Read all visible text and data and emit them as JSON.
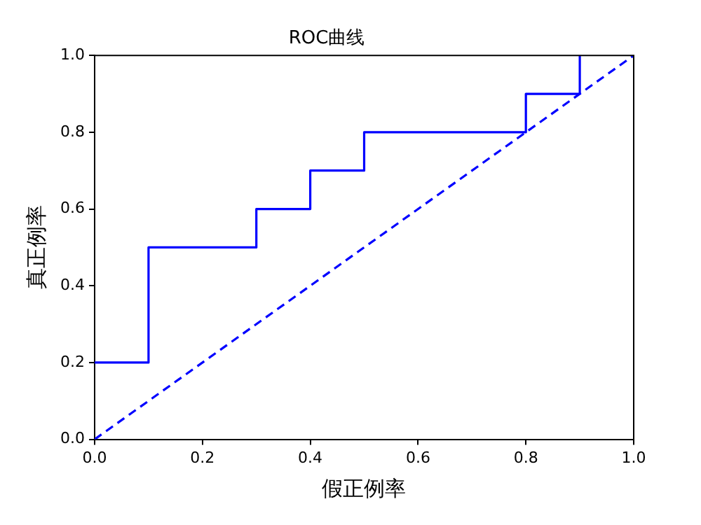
{
  "chart_data": {
    "type": "line",
    "title": "ROC曲线",
    "xlabel": "假正例率",
    "ylabel": "真正例率",
    "xlim": [
      0,
      1
    ],
    "ylim": [
      0,
      1
    ],
    "xticks": [
      {
        "value": 0,
        "label": "0.0"
      },
      0.2,
      0.4,
      0.6,
      0.8,
      {
        "value": 1,
        "label": "1.0"
      }
    ],
    "yticks": [
      {
        "value": 0,
        "label": "0.0"
      },
      0.2,
      0.4,
      0.6,
      0.8,
      {
        "value": 1,
        "label": "1.0"
      }
    ],
    "grid": false,
    "legend": false,
    "marker": "none",
    "series": [
      {
        "color": "#0000ff",
        "line_style": "solid",
        "x": [
          0,
          0.1,
          0.1,
          0.3,
          0.3,
          0.4,
          0.4,
          0.5,
          0.5,
          0.8,
          0.8,
          0.9,
          0.9
        ],
        "values": [
          0.2,
          0.2,
          0.5,
          0.5,
          0.6,
          0.6,
          0.7,
          0.7,
          0.8,
          0.8,
          0.9,
          0.9,
          1.0
        ]
      },
      {
        "color": "#0000ff",
        "line_style": "dashed",
        "x": [
          0,
          1
        ],
        "values": [
          0,
          1
        ]
      }
    ]
  }
}
